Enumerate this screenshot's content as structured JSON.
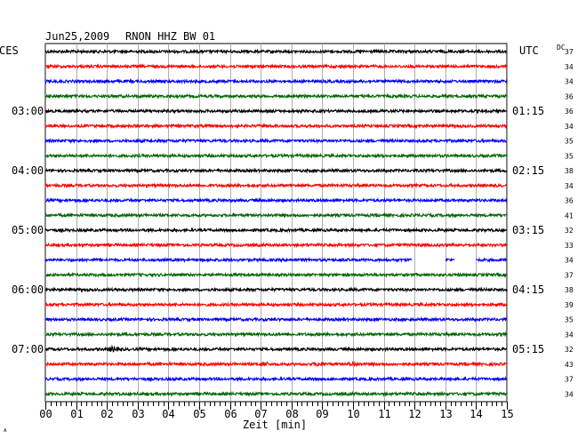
{
  "header": {
    "date": "Jun25,2009",
    "station": "RNON HHZ BW 01",
    "left_zone": "CES",
    "right_zone": "UTC",
    "dc_label": "DC"
  },
  "chart_data": {
    "type": "line",
    "title": "Jun25,2009   RNON HHZ BW 01",
    "xlabel": "Zeit [min]",
    "xlim": [
      0,
      15
    ],
    "x_ticks": [
      "00",
      "01",
      "02",
      "03",
      "04",
      "05",
      "06",
      "07",
      "08",
      "09",
      "10",
      "11",
      "12",
      "13",
      "14",
      "15"
    ],
    "trace_colors": [
      "#000000",
      "#ff0000",
      "#0000ff",
      "#006600"
    ],
    "local_time_labels": [
      {
        "trace": 4,
        "text": "03:00"
      },
      {
        "trace": 8,
        "text": "04:00"
      },
      {
        "trace": 12,
        "text": "05:00"
      },
      {
        "trace": 16,
        "text": "06:00"
      },
      {
        "trace": 20,
        "text": "07:00"
      }
    ],
    "utc_time_labels": [
      {
        "trace": 4,
        "text": "01:15"
      },
      {
        "trace": 8,
        "text": "02:15"
      },
      {
        "trace": 12,
        "text": "03:15"
      },
      {
        "trace": 16,
        "text": "04:15"
      },
      {
        "trace": 20,
        "text": "05:15"
      }
    ],
    "dc_offsets": [
      37,
      34,
      34,
      36,
      36,
      34,
      35,
      35,
      38,
      34,
      36,
      41,
      32,
      33,
      34,
      37,
      38,
      39,
      35,
      34,
      32,
      43,
      37,
      34
    ],
    "gaps": [
      {
        "trace": 14,
        "from_min": 11.9,
        "to_min": 13.0
      },
      {
        "trace": 14,
        "from_min": 13.3,
        "to_min": 14.0
      }
    ],
    "events": [
      {
        "trace": 20,
        "at_min": 2.2,
        "amplitude": 2.2
      },
      {
        "trace": 21,
        "at_min": 7.1,
        "amplitude": 1.6
      },
      {
        "trace": 21,
        "at_min": 8.9,
        "amplitude": 1.8
      },
      {
        "trace": 21,
        "at_min": 10.0,
        "amplitude": 1.5
      }
    ]
  },
  "footer_mark": "ᴬ"
}
